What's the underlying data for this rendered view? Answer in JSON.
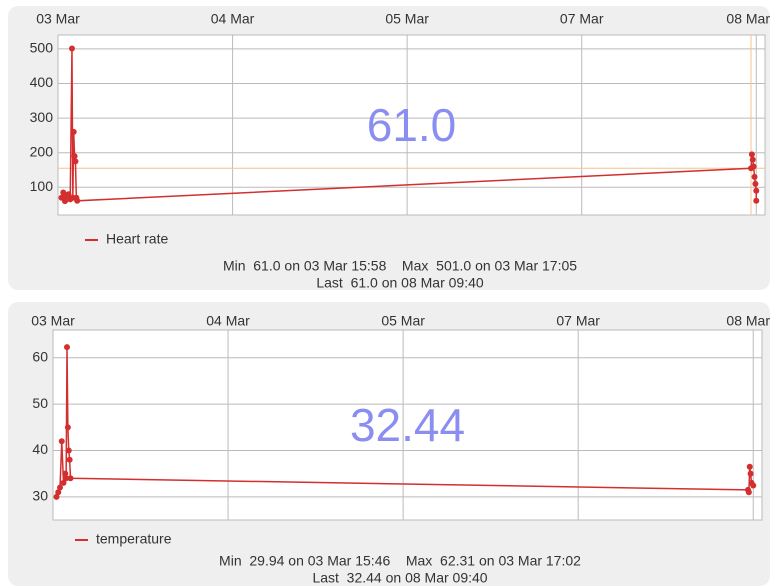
{
  "chart_data": [
    {
      "type": "line",
      "current_value": "61.0",
      "xlim": [
        0,
        4.05
      ],
      "xticks": [
        {
          "value": 0,
          "label": "03 Mar"
        },
        {
          "value": 1,
          "label": "04 Mar"
        },
        {
          "value": 2,
          "label": "05 Mar"
        },
        {
          "value": 3,
          "label": "07 Mar"
        },
        {
          "value": 4,
          "label": "08 Mar"
        }
      ],
      "ylim": [
        20,
        540
      ],
      "yticks": [
        100,
        200,
        300,
        400,
        500
      ],
      "grid": true,
      "x": [
        0.02,
        0.03,
        0.04,
        0.05,
        0.06,
        0.07,
        0.08,
        0.085,
        0.09,
        0.095,
        0.1,
        0.105,
        0.11,
        3.97,
        3.975,
        3.98,
        3.985,
        3.99,
        3.995,
        4.0,
        4.0
      ],
      "series": [
        {
          "name": "Heart rate",
          "color": "#d32f2f",
          "values": [
            70,
            85,
            60,
            75,
            80,
            65,
            501,
            70,
            260,
            190,
            175,
            70,
            61,
            155,
            195,
            180,
            160,
            130,
            110,
            90,
            61
          ]
        }
      ],
      "highlight": {
        "x": 3.97,
        "y": 155
      },
      "summary": [
        "Min  61.0 on 03 Mar 15:58    Max  501.0 on 03 Mar 17:05",
        "Last  61.0 on 08 Mar 09:40"
      ]
    },
    {
      "type": "line",
      "current_value": "32.44",
      "xlim": [
        0,
        4.05
      ],
      "xticks": [
        {
          "value": 0,
          "label": "03 Mar"
        },
        {
          "value": 1,
          "label": "04 Mar"
        },
        {
          "value": 2,
          "label": "05 Mar"
        },
        {
          "value": 3,
          "label": "07 Mar"
        },
        {
          "value": 4,
          "label": "08 Mar"
        }
      ],
      "ylim": [
        25,
        66
      ],
      "yticks": [
        30,
        40,
        50,
        60
      ],
      "grid": true,
      "x": [
        0.02,
        0.03,
        0.04,
        0.05,
        0.06,
        0.07,
        0.075,
        0.08,
        0.085,
        0.09,
        0.095,
        0.1,
        3.97,
        3.975,
        3.98,
        3.985,
        3.99,
        4.0
      ],
      "series": [
        {
          "name": "temperature",
          "color": "#d32f2f",
          "values": [
            30,
            31,
            32,
            42,
            33,
            35,
            34,
            62.31,
            45,
            40,
            38,
            34,
            31.5,
            31,
            36.5,
            35,
            33,
            32.44
          ]
        }
      ],
      "summary": [
        "Min  29.94 on 03 Mar 15:46    Max  62.31 on 03 Mar 17:02",
        "Last  32.44 on 08 Mar 09:40"
      ]
    }
  ]
}
